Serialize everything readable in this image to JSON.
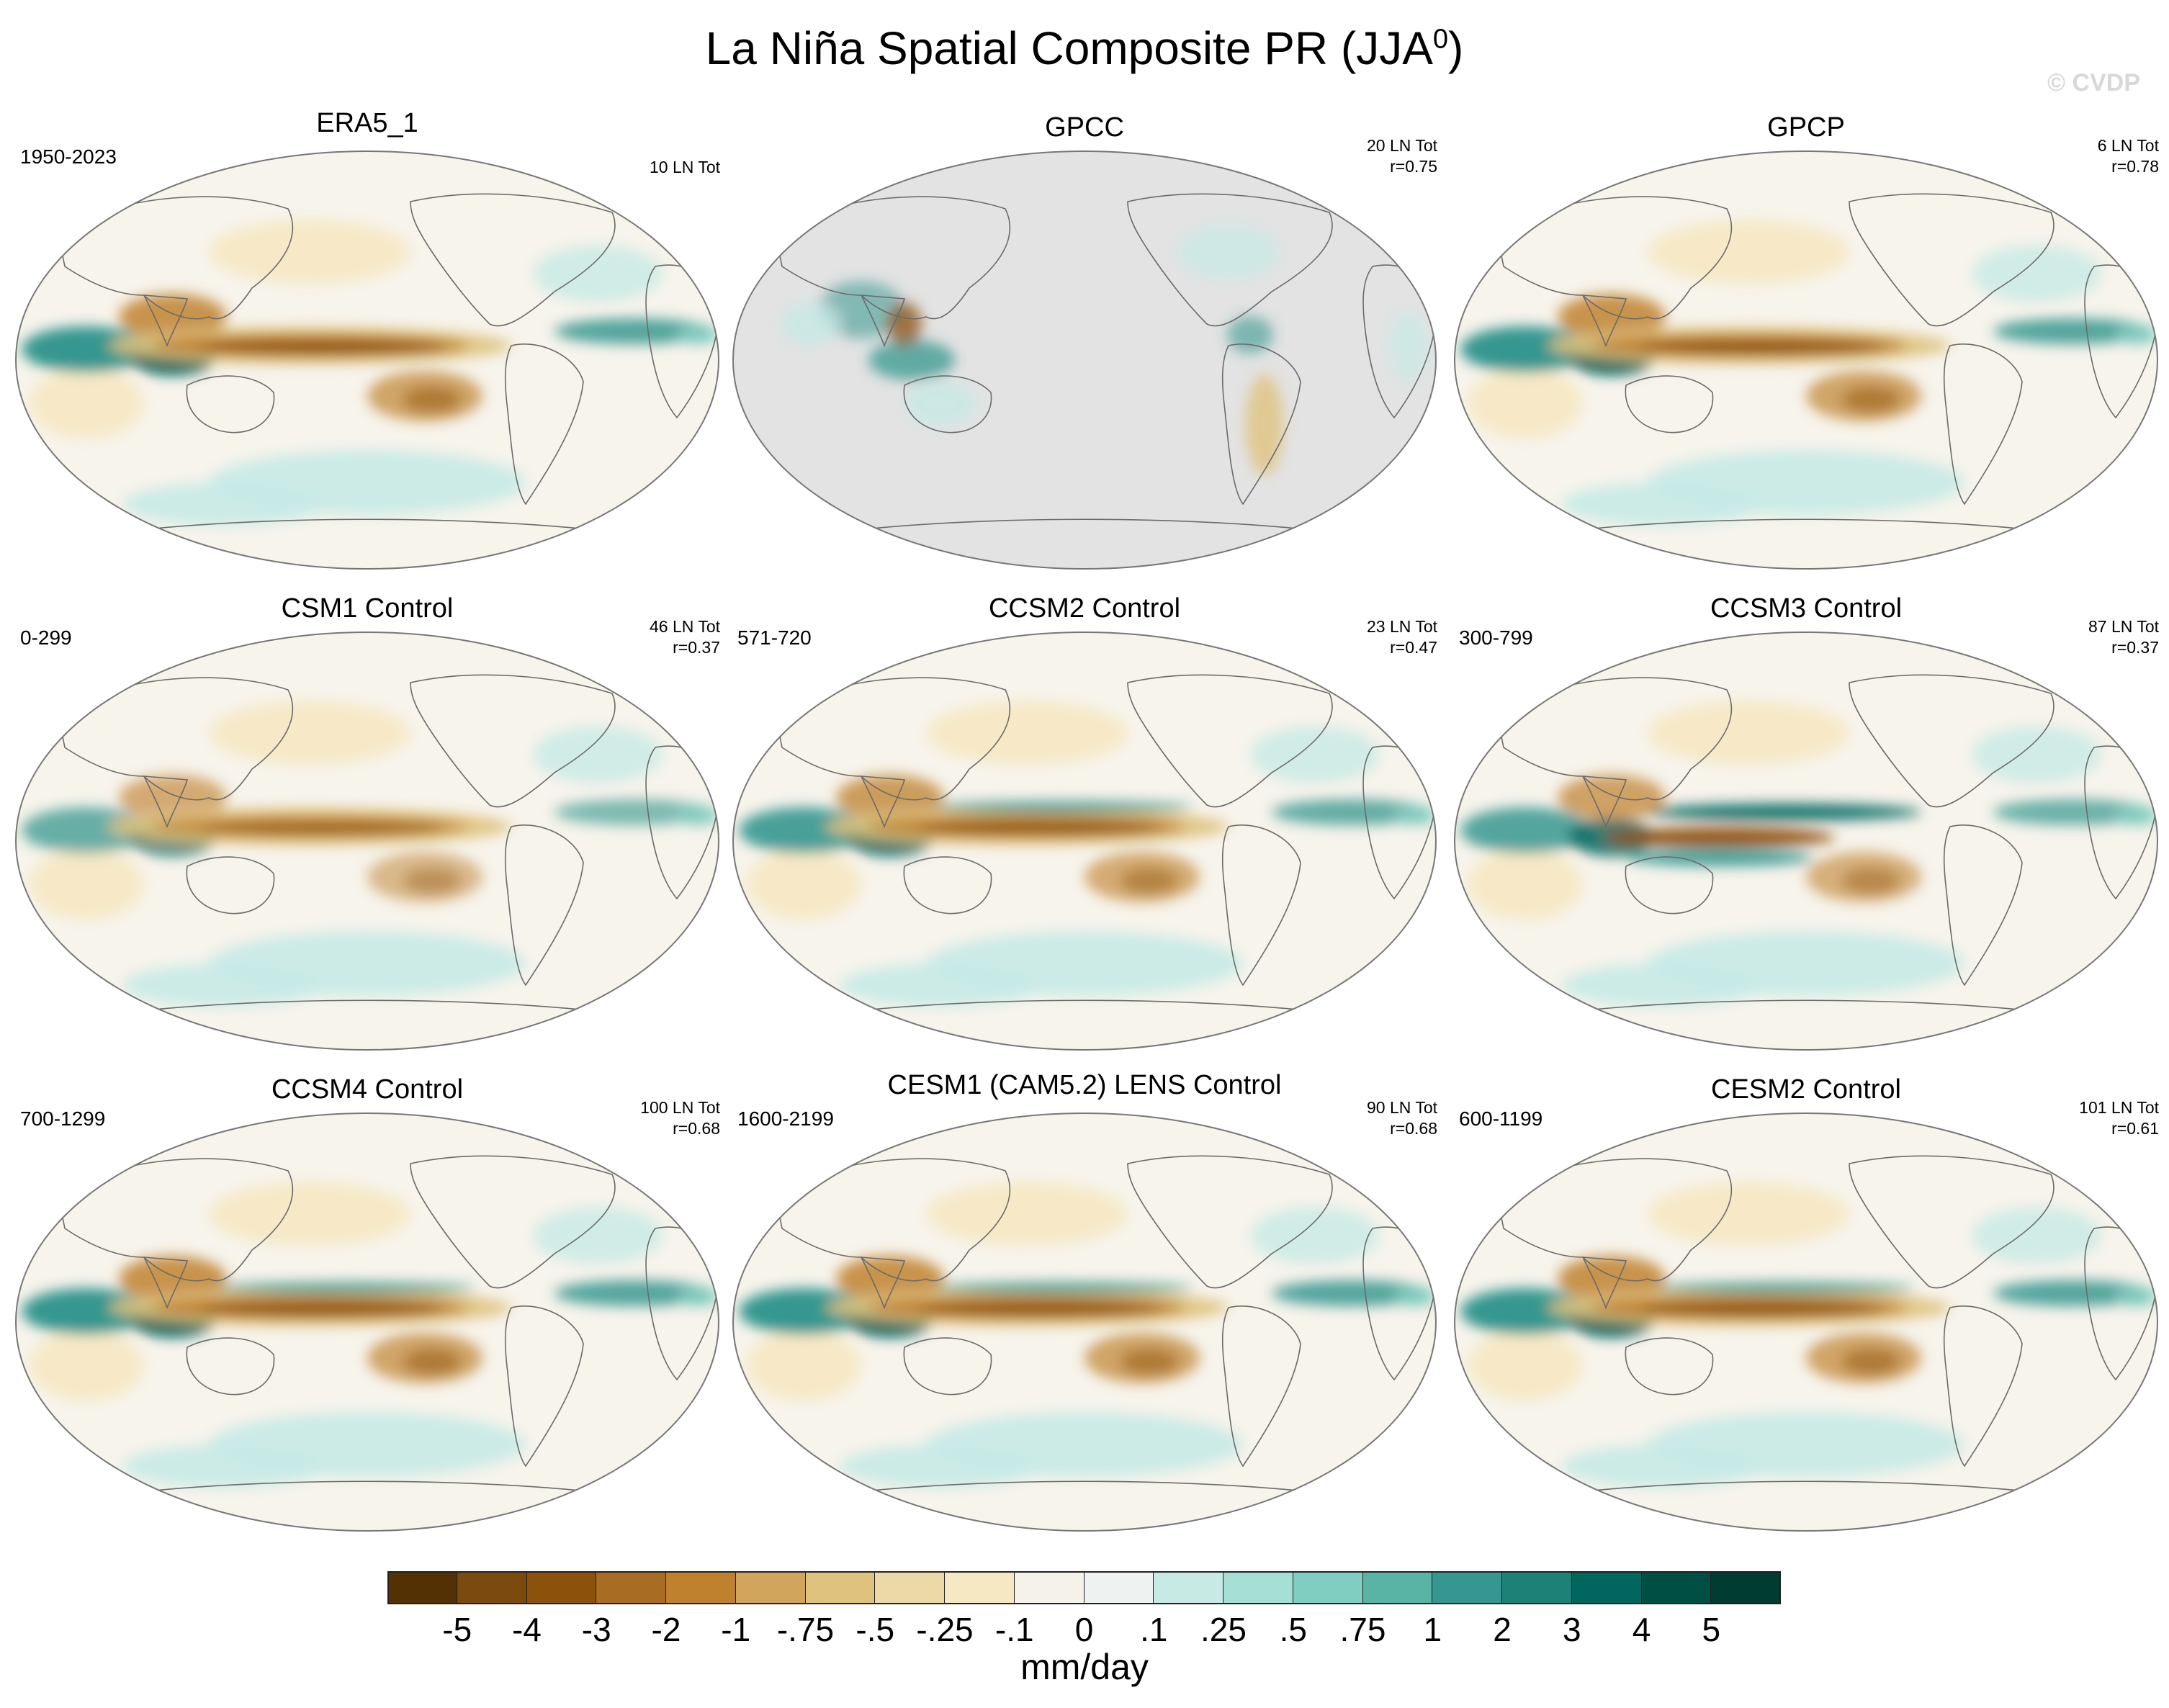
{
  "figure": {
    "title_main": "La Niña Spatial Composite PR (JJA",
    "title_sup": "0",
    "title_end": ")",
    "watermark": "© CVDP"
  },
  "panels": [
    {
      "title": "ERA5_1",
      "period": "1950-2023",
      "count": "10 LN Tot",
      "corr": "",
      "variant": "obs"
    },
    {
      "title": "GPCC",
      "period": "",
      "count": "20 LN Tot",
      "corr": "r=0.75",
      "variant": "land"
    },
    {
      "title": "GPCP",
      "period": "",
      "count": "6 LN Tot",
      "corr": "r=0.78",
      "variant": "obs"
    },
    {
      "title": "CSM1 Control",
      "period": "0-299",
      "count": "46 LN Tot",
      "corr": "r=0.37",
      "variant": "weak"
    },
    {
      "title": "CCSM2 Control",
      "period": "571-720",
      "count": "23 LN Tot",
      "corr": "r=0.47",
      "variant": "model"
    },
    {
      "title": "CCSM3 Control",
      "period": "300-799",
      "count": "87 LN Tot",
      "corr": "r=0.37",
      "variant": "double"
    },
    {
      "title": "CCSM4 Control",
      "period": "700-1299",
      "count": "100 LN Tot",
      "corr": "r=0.68",
      "variant": "strong"
    },
    {
      "title": "CESM1 (CAM5.2) LENS Control",
      "period": "1600-2199",
      "count": "90 LN Tot",
      "corr": "r=0.68",
      "variant": "strong"
    },
    {
      "title": "CESM2 Control",
      "period": "600-1199",
      "count": "101 LN Tot",
      "corr": "r=0.61",
      "variant": "strong"
    }
  ],
  "colorbar": {
    "units": "mm/day",
    "colors": [
      "#543005",
      "#7a4a0e",
      "#8c510a",
      "#a86d22",
      "#bf812d",
      "#d1a55c",
      "#dfc27d",
      "#ecd9a8",
      "#f6e8c3",
      "#f5f2ea",
      "#eef3f1",
      "#c7eae5",
      "#a6dfd4",
      "#80cdc1",
      "#5ab4a6",
      "#35978f",
      "#1c8177",
      "#01665e",
      "#004f45",
      "#003c30"
    ],
    "labels": [
      "-5",
      "-4",
      "-3",
      "-2",
      "-1",
      "-.75",
      "-.5",
      "-.25",
      "-.1",
      "0",
      ".1",
      ".25",
      ".5",
      ".75",
      "1",
      "2",
      "3",
      "4",
      "5"
    ]
  },
  "chart_data": {
    "type": "heatmap",
    "title": "La Niña Spatial Composite PR (JJA0)",
    "units": "mm/day",
    "projection": "Robinson, Pacific-centered",
    "levels": [
      -5,
      -4,
      -3,
      -2,
      -1,
      -0.75,
      -0.5,
      -0.25,
      -0.1,
      0,
      0.1,
      0.25,
      0.5,
      0.75,
      1,
      2,
      3,
      4,
      5
    ],
    "panels": [
      {
        "name": "ERA5_1",
        "period": "1950-2023",
        "events": 10
      },
      {
        "name": "GPCC",
        "events": 20,
        "r": 0.75
      },
      {
        "name": "GPCP",
        "events": 6,
        "r": 0.78
      },
      {
        "name": "CSM1 Control",
        "period": "0-299",
        "events": 46,
        "r": 0.37
      },
      {
        "name": "CCSM2 Control",
        "period": "571-720",
        "events": 23,
        "r": 0.47
      },
      {
        "name": "CCSM3 Control",
        "period": "300-799",
        "events": 87,
        "r": 0.37
      },
      {
        "name": "CCSM4 Control",
        "period": "700-1299",
        "events": 100,
        "r": 0.68
      },
      {
        "name": "CESM1 (CAM5.2) LENS Control",
        "period": "1600-2199",
        "events": 90,
        "r": 0.68
      },
      {
        "name": "CESM2 Control",
        "period": "600-1199",
        "events": 101,
        "r": 0.61
      }
    ]
  }
}
